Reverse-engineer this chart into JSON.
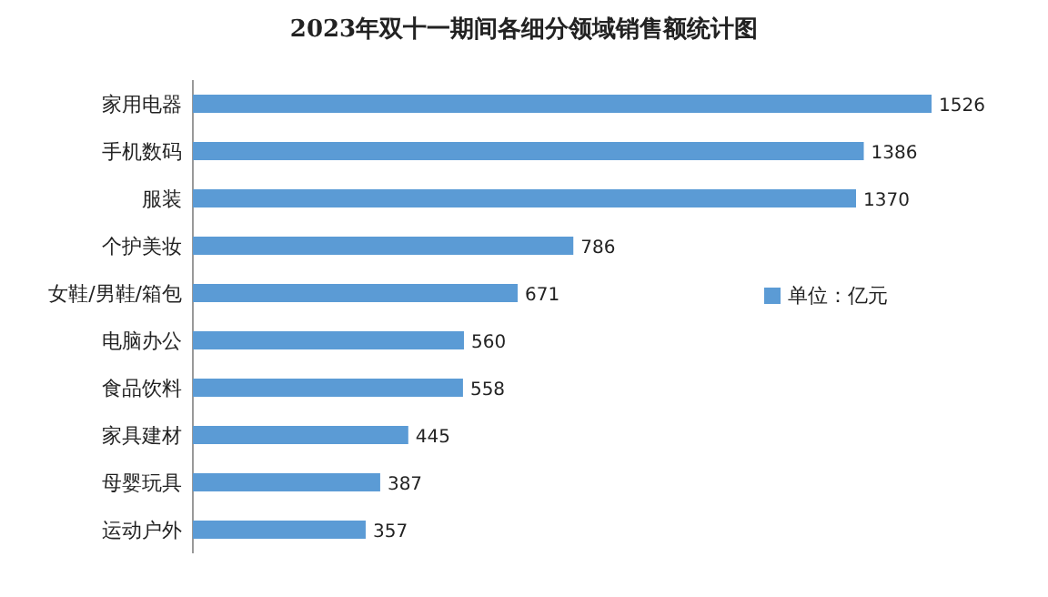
{
  "chart_data": {
    "type": "bar",
    "orientation": "horizontal",
    "title": "2023年双十一期间各细分领域销售额统计图",
    "categories": [
      "家用电器",
      "手机数码",
      "服装",
      "个护美妆",
      "女鞋/男鞋/箱包",
      "电脑办公",
      "食品饮料",
      "家具建材",
      "母婴玩具",
      "运动户外"
    ],
    "series": [
      {
        "name": "单位：亿元",
        "color": "#5b9bd5",
        "values": [
          1526,
          1386,
          1370,
          786,
          671,
          560,
          558,
          445,
          387,
          357
        ]
      }
    ],
    "data_labels": true,
    "legend": "right"
  }
}
